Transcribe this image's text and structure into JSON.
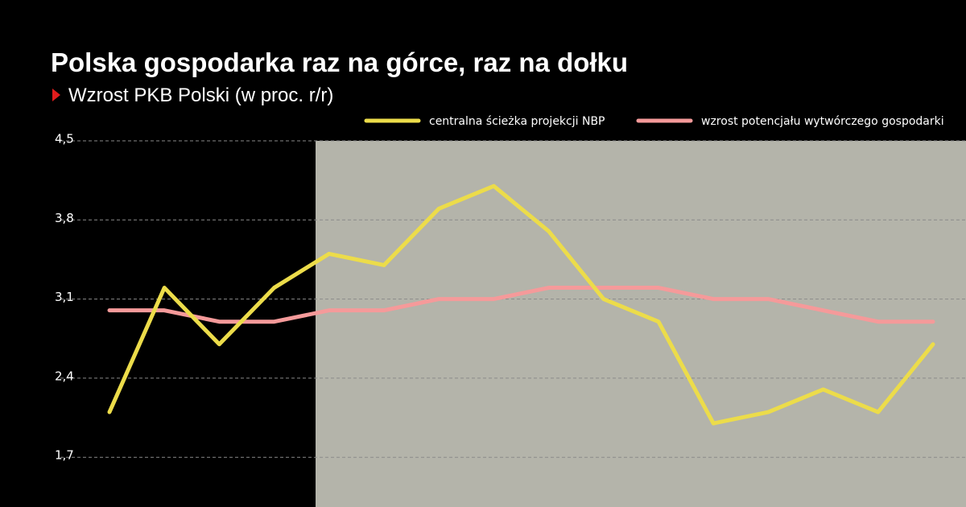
{
  "chart_data": {
    "type": "line",
    "title": "Polska gospodarka raz na górce, raz na dołku",
    "subtitle": "Wzrost PKB Polski (w proc. r/r)",
    "categories": [
      null,
      null,
      null,
      null,
      null,
      null,
      null,
      null,
      null,
      null,
      null,
      null,
      null,
      null,
      null,
      null
    ],
    "series": [
      {
        "name": "centralna ścieżka projekcji NBP",
        "color": "#ecdc4a",
        "values": [
          2.1,
          3.2,
          2.7,
          3.2,
          3.5,
          3.4,
          3.9,
          4.1,
          3.7,
          3.1,
          2.9,
          2.0,
          2.1,
          2.3,
          2.1,
          2.7
        ]
      },
      {
        "name": "wzrost potencjału wytwórczego gospodarki",
        "color": "#f59a9a",
        "values": [
          3.0,
          3.0,
          2.9,
          2.9,
          3.0,
          3.0,
          3.1,
          3.1,
          3.2,
          3.2,
          3.2,
          3.1,
          3.1,
          3.0,
          2.9,
          2.9
        ]
      }
    ],
    "ylim": [
      1.26,
      4.5
    ],
    "yticks": [
      {
        "value": 1.7,
        "label": "1,7"
      },
      {
        "value": 2.4,
        "label": "2,4"
      },
      {
        "value": 3.1,
        "label": "3,1"
      },
      {
        "value": 3.8,
        "label": "3,8"
      },
      {
        "value": 4.5,
        "label": "4,5"
      }
    ],
    "grid": true
  }
}
